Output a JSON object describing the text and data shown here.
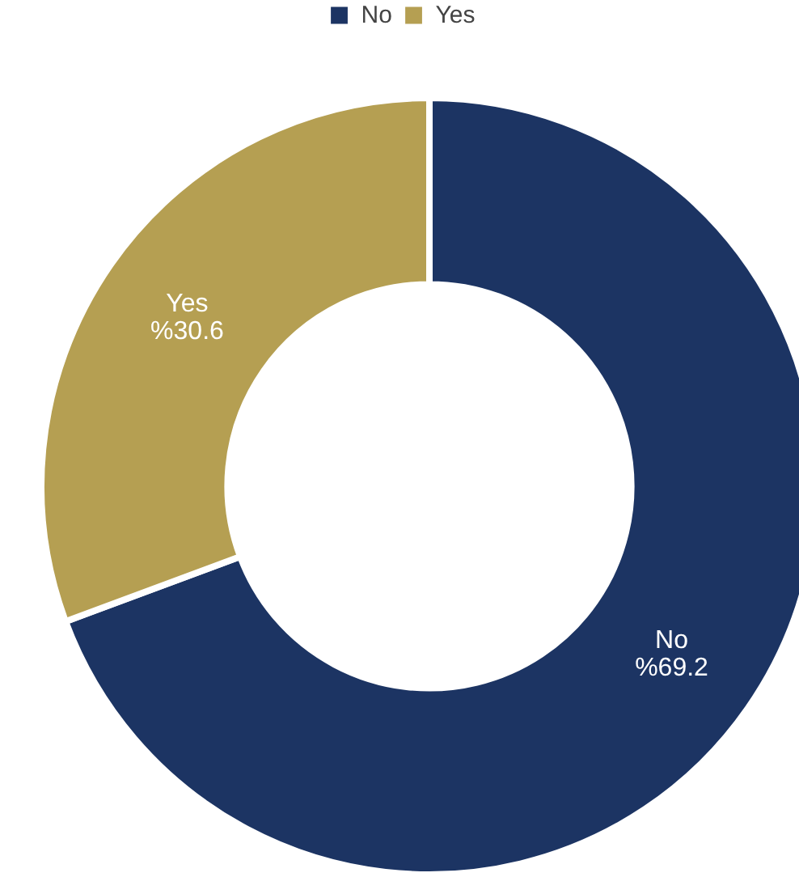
{
  "chart_data": {
    "type": "donut",
    "categories": [
      "No",
      "Yes"
    ],
    "values": [
      69.2,
      30.6
    ],
    "value_labels": [
      "%69.2",
      "%30.6"
    ],
    "colors": [
      "#1c3463",
      "#b59f52"
    ],
    "legend": "top"
  }
}
